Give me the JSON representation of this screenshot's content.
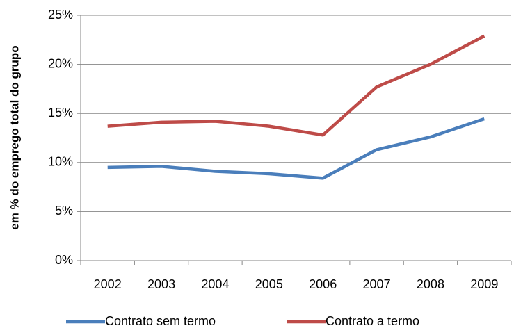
{
  "chart_data": {
    "type": "line",
    "ylabel": "em % do emprego total do grupo",
    "categories": [
      "2002",
      "2003",
      "2004",
      "2005",
      "2006",
      "2007",
      "2008",
      "2009"
    ],
    "series": [
      {
        "name": "Contrato sem termo",
        "color": "#4a7ebb",
        "values": [
          9.5,
          9.6,
          9.1,
          8.85,
          8.4,
          11.3,
          12.6,
          14.45
        ]
      },
      {
        "name": "Contrato a termo",
        "color": "#be4b48",
        "values": [
          13.7,
          14.1,
          14.2,
          13.7,
          12.8,
          17.7,
          20.0,
          22.9
        ]
      }
    ],
    "ylim": [
      0,
      25
    ],
    "yticks": [
      {
        "value": 0,
        "label": "0%"
      },
      {
        "value": 5,
        "label": "5%"
      },
      {
        "value": 10,
        "label": "10%"
      },
      {
        "value": 15,
        "label": "15%"
      },
      {
        "value": 20,
        "label": "20%"
      },
      {
        "value": 25,
        "label": "25%"
      }
    ],
    "grid": true,
    "legend": "bottom"
  }
}
